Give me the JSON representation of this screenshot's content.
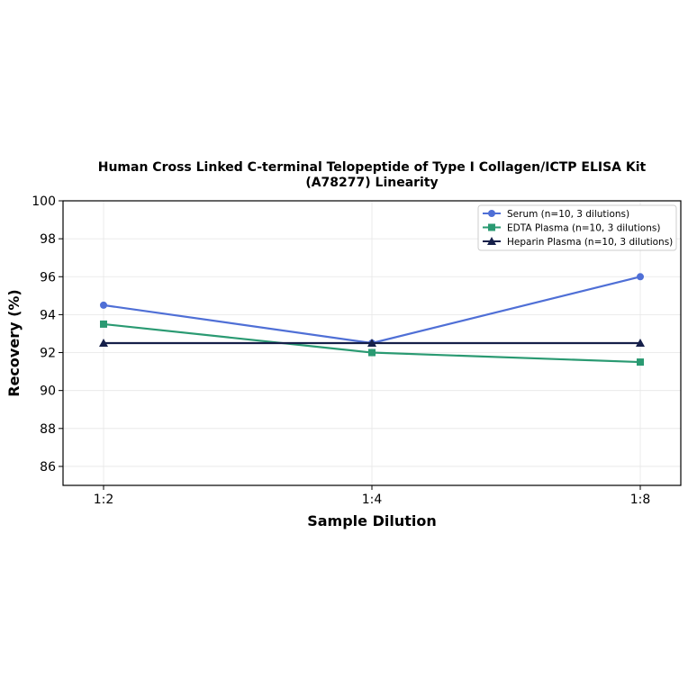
{
  "chart_data": {
    "type": "line",
    "title_line1": "Human Cross Linked C-terminal Telopeptide of Type I Collagen/ICTP ELISA Kit",
    "title_line2": "(A78277) Linearity",
    "xlabel": "Sample Dilution",
    "ylabel": "Recovery (%)",
    "categories": [
      "1:2",
      "1:4",
      "1:8"
    ],
    "ylim": [
      85,
      100
    ],
    "yticks": [
      86,
      88,
      90,
      92,
      94,
      96,
      98,
      100
    ],
    "grid": true,
    "legend_position": "top-right",
    "series": [
      {
        "name": "Serum (n=10, 3 dilutions)",
        "values": [
          94.5,
          92.5,
          96.0
        ],
        "color": "#4f6fd6",
        "marker": "circle"
      },
      {
        "name": "EDTA Plasma (n=10, 3 dilutions)",
        "values": [
          93.5,
          92.0,
          91.5
        ],
        "color": "#2a9a72",
        "marker": "square"
      },
      {
        "name": "Heparin Plasma (n=10, 3 dilutions)",
        "values": [
          92.5,
          92.5,
          92.5
        ],
        "color": "#16204a",
        "marker": "triangle"
      }
    ]
  }
}
